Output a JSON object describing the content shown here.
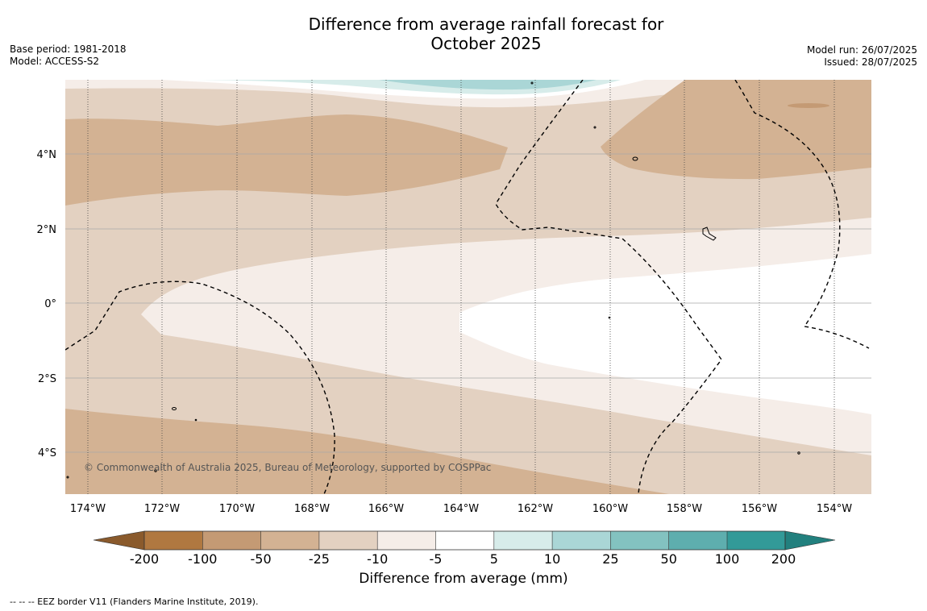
{
  "title_line1": "Difference from average rainfall forecast for",
  "title_line2": "October 2025",
  "meta_left": [
    "Base period: 1981-2018",
    "Model: ACCESS-S2"
  ],
  "meta_right": [
    "Model run: 26/07/2025",
    "Issued: 28/07/2025"
  ],
  "copyright": "© Commonwealth of Australia 2025, Bureau of Meteorology, supported by COSPPac",
  "lat_labels": [
    "4°N",
    "2°N",
    "0°",
    "2°S",
    "4°S"
  ],
  "lon_labels": [
    "174°W",
    "172°W",
    "170°W",
    "168°W",
    "166°W",
    "164°W",
    "162°W",
    "160°W",
    "158°W",
    "156°W",
    "154°W"
  ],
  "colorbar": {
    "title": "Difference from average (mm)",
    "ticks": [
      "-200",
      "-100",
      "-50",
      "-25",
      "-10",
      "-5",
      "5",
      "10",
      "25",
      "50",
      "100",
      "200"
    ],
    "colors": [
      "#8a5a2c",
      "#b07840",
      "#c49a74",
      "#d3b293",
      "#e3d1c1",
      "#f5ede8",
      "#ffffff",
      "#d7ecea",
      "#aad6d6",
      "#83c2c0",
      "#5eaeae",
      "#329a98",
      "#22807e"
    ]
  },
  "footer": "--  --  -- EEZ border V11 (Flanders Marine Institute, 2019)."
}
